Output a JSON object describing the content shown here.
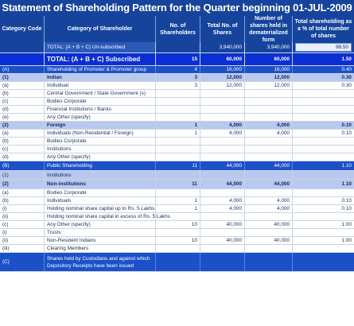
{
  "title": "Statement of Shareholding Pattern for the Quarter beginning 01-JUL-2009",
  "headers": [
    "Category Code",
    "Category of Shareholder",
    "No. of Shareholders",
    "Total No. of Shares",
    "Number of shares held in dematerialized form",
    "Total shareholding as a % of total number of shares"
  ],
  "rows": [
    {
      "style": "total1",
      "code": "",
      "name": "TOTAL: (A + B + C) Un-subscribed",
      "holders": "",
      "shares": "3,940,000",
      "demat": "3,940,000",
      "pct": "98.50",
      "h": 14
    },
    {
      "style": "total2",
      "code": "",
      "name": "TOTAL: (A + B + C) Subscribed",
      "holders": "15",
      "shares": "60,000",
      "demat": "60,000",
      "pct": "1.50",
      "h": 16
    },
    {
      "style": "blue",
      "code": "(A)",
      "name": "Shareholding of Promoter & Promoter group",
      "holders": "4",
      "shares": "16,000",
      "demat": "16,000",
      "pct": "0.40",
      "h": 10
    },
    {
      "style": "light bold",
      "code": "(1)",
      "name": "Indian",
      "holders": "3",
      "shares": "12,000",
      "demat": "12,000",
      "pct": "0.30",
      "h": 10
    },
    {
      "style": "white",
      "code": "(a)",
      "name": "Individual",
      "holders": "3",
      "shares": "12,000",
      "demat": "12,000",
      "pct": "0.30",
      "h": 10
    },
    {
      "style": "white",
      "code": "(b)",
      "name": "Central Government / State Government (s)",
      "holders": "",
      "shares": "",
      "demat": "",
      "pct": "",
      "h": 10
    },
    {
      "style": "white",
      "code": "(c)",
      "name": "Bodies Corporate",
      "holders": "",
      "shares": "",
      "demat": "",
      "pct": "",
      "h": 10
    },
    {
      "style": "white",
      "code": "(d)",
      "name": "Financial Institutions / Banks",
      "holders": "",
      "shares": "",
      "demat": "",
      "pct": "",
      "h": 10
    },
    {
      "style": "white",
      "code": "(e)",
      "name": "Any Other (specify)",
      "holders": "",
      "shares": "",
      "demat": "",
      "pct": "",
      "h": 10
    },
    {
      "style": "light bold",
      "code": "(2)",
      "name": "Foreign",
      "holders": "1",
      "shares": "4,000",
      "demat": "4,000",
      "pct": "0.10",
      "h": 10
    },
    {
      "style": "white",
      "code": "(a)",
      "name": "Individuals (Non-Residential / Foreign)",
      "holders": "1",
      "shares": "4,000",
      "demat": "4,000",
      "pct": "0.10",
      "h": 10
    },
    {
      "style": "white",
      "code": "(b)",
      "name": "Bodies Corporate",
      "holders": "",
      "shares": "",
      "demat": "",
      "pct": "",
      "h": 10
    },
    {
      "style": "white",
      "code": "(c)",
      "name": "Institutions",
      "holders": "",
      "shares": "",
      "demat": "",
      "pct": "",
      "h": 10
    },
    {
      "style": "white",
      "code": "(d)",
      "name": "Any Other (specify)",
      "holders": "",
      "shares": "",
      "demat": "",
      "pct": "",
      "h": 10
    },
    {
      "style": "blue",
      "code": "(B)",
      "name": "Public Shareholding",
      "holders": "11",
      "shares": "44,000",
      "demat": "44,000",
      "pct": "1.10",
      "h": 12
    },
    {
      "style": "light",
      "code": "(1)",
      "name": "Institutions",
      "holders": "",
      "shares": "",
      "demat": "",
      "pct": "",
      "h": 11
    },
    {
      "style": "light bold",
      "code": "(2)",
      "name": "Non-institutions",
      "holders": "11",
      "shares": "44,000",
      "demat": "44,000",
      "pct": "1.10",
      "h": 12
    },
    {
      "style": "white",
      "code": "(a)",
      "name": "Bodies Corporate",
      "holders": "",
      "shares": "",
      "demat": "",
      "pct": "",
      "h": 10
    },
    {
      "style": "white",
      "code": "(b)",
      "name": "Individuals",
      "holders": "1",
      "shares": "4,000",
      "demat": "4,000",
      "pct": "0.10",
      "h": 10
    },
    {
      "style": "white",
      "code": "(i)",
      "name": "Holding nominal share capital up to Rs. 5 Lakhs",
      "holders": "1",
      "shares": "4,000",
      "demat": "4,000",
      "pct": "0.10",
      "h": 10
    },
    {
      "style": "white",
      "code": "(ii)",
      "name": "Holding nominal share capital in excess of Rs. 5 Lakhs",
      "holders": "",
      "shares": "",
      "demat": "",
      "pct": "",
      "h": 10
    },
    {
      "style": "white",
      "code": "(c)",
      "name": "Any Other (specify)",
      "holders": "10",
      "shares": "40,000",
      "demat": "40,000",
      "pct": "1.00",
      "h": 10
    },
    {
      "style": "white",
      "code": "(i)",
      "name": "Trusts",
      "holders": "",
      "shares": "",
      "demat": "",
      "pct": "",
      "h": 10
    },
    {
      "style": "white",
      "code": "(ii)",
      "name": "Non-Resident Indians",
      "holders": "10",
      "shares": "40,000",
      "demat": "40,000",
      "pct": "1.00",
      "h": 10
    },
    {
      "style": "white",
      "code": "(iii)",
      "name": "Clearing Members",
      "holders": "",
      "shares": "",
      "demat": "",
      "pct": "",
      "h": 10
    },
    {
      "style": "blue tall",
      "code": "(C)",
      "name": "Shares held by Custodians and against which Depository Receipts have been issued",
      "holders": "",
      "shares": "",
      "demat": "",
      "pct": "",
      "h": 24
    }
  ]
}
